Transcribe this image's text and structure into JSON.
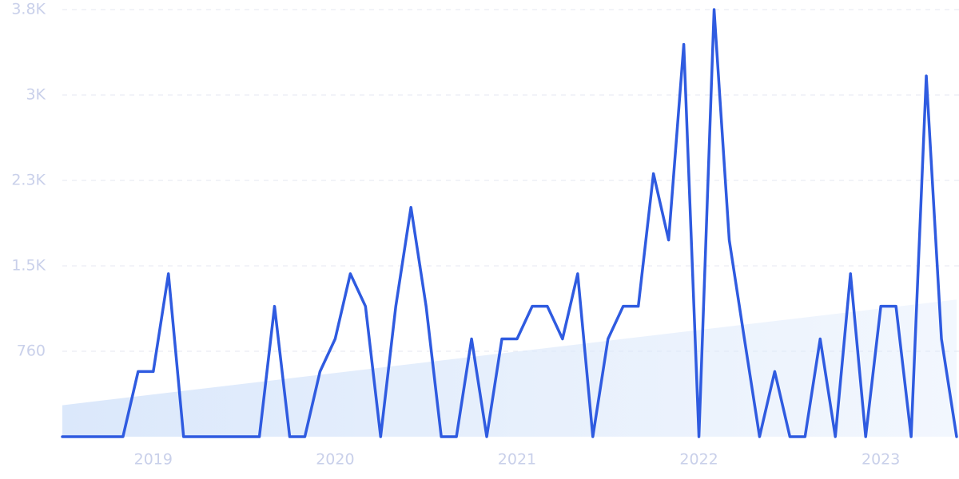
{
  "chart_data": {
    "type": "line",
    "categories": [
      null,
      null,
      null,
      null,
      null,
      null,
      "2019",
      null,
      null,
      null,
      null,
      null,
      null,
      null,
      null,
      null,
      null,
      null,
      "2020",
      null,
      null,
      null,
      null,
      null,
      null,
      null,
      null,
      null,
      null,
      null,
      "2021",
      null,
      null,
      null,
      null,
      null,
      null,
      null,
      null,
      null,
      null,
      null,
      "2022",
      null,
      null,
      null,
      null,
      null,
      null,
      null,
      null,
      null,
      null,
      null,
      "2023",
      null,
      null,
      null,
      null,
      null
    ],
    "series": [
      {
        "color": "#2f5be0",
        "values": [
          0,
          0,
          0,
          0,
          0,
          580,
          580,
          1450,
          0,
          0,
          0,
          0,
          0,
          0,
          1160,
          0,
          0,
          580,
          870,
          1450,
          1160,
          0,
          1160,
          2040,
          1160,
          0,
          0,
          870,
          0,
          870,
          870,
          1160,
          1160,
          870,
          1450,
          0,
          870,
          1160,
          1160,
          2340,
          1750,
          3490,
          0,
          3800,
          1750,
          870,
          0,
          580,
          0,
          0,
          870,
          0,
          1450,
          0,
          1160,
          1160,
          0,
          3210,
          870,
          0
        ]
      }
    ],
    "trend": [
      280,
      1220
    ],
    "trend_color": "#dbe8fb",
    "ylim": [
      0,
      3800
    ],
    "yticks": [
      {
        "value": 760,
        "label": "760"
      },
      {
        "value": 1520,
        "label": "1.5K"
      },
      {
        "value": 2280,
        "label": "2.3K"
      },
      {
        "value": 3040,
        "label": "3K"
      },
      {
        "value": 3800,
        "label": "3.8K"
      }
    ],
    "grid": true
  }
}
